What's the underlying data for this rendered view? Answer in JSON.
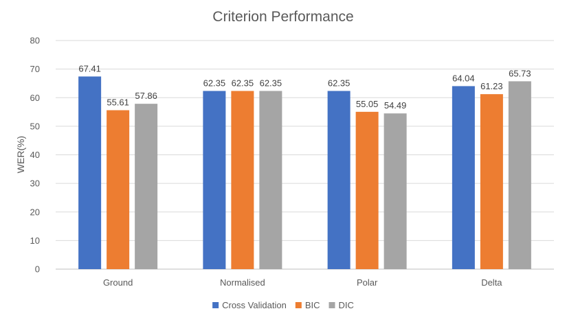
{
  "chart_data": {
    "type": "bar",
    "title": "Criterion Performance",
    "xlabel": "",
    "ylabel": "WER(%)",
    "ylim": [
      0,
      80
    ],
    "yticks": [
      0,
      10,
      20,
      30,
      40,
      50,
      60,
      70,
      80
    ],
    "categories": [
      "Ground",
      "Normalised",
      "Polar",
      "Delta"
    ],
    "series": [
      {
        "name": "Cross Validation",
        "color": "#4472c4",
        "values": [
          67.41,
          62.35,
          62.35,
          64.04
        ]
      },
      {
        "name": "BIC",
        "color": "#ed7d31",
        "values": [
          55.61,
          62.35,
          55.05,
          61.23
        ]
      },
      {
        "name": "DIC",
        "color": "#a5a5a5",
        "values": [
          57.86,
          62.35,
          54.49,
          65.73
        ]
      }
    ],
    "grid": true,
    "legend": "bottom",
    "data_labels": true
  }
}
